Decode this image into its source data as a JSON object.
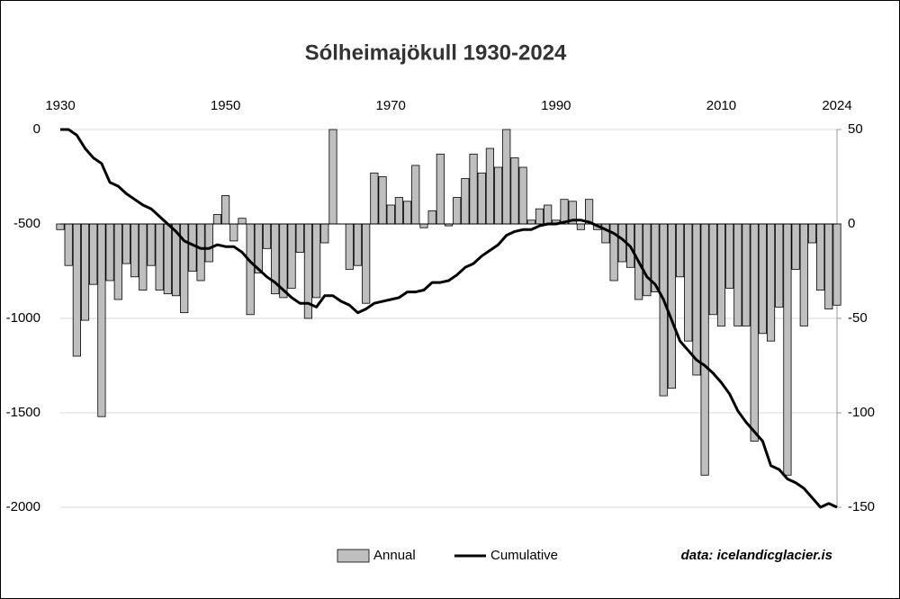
{
  "chart_data": {
    "type": "bar-line",
    "title": "Sólheimajökull 1930-2024",
    "x": [
      1930,
      1931,
      1932,
      1933,
      1934,
      1935,
      1936,
      1937,
      1938,
      1939,
      1940,
      1941,
      1942,
      1943,
      1944,
      1945,
      1946,
      1947,
      1948,
      1949,
      1950,
      1951,
      1952,
      1953,
      1954,
      1955,
      1956,
      1957,
      1958,
      1959,
      1960,
      1961,
      1962,
      1963,
      1964,
      1965,
      1966,
      1967,
      1968,
      1969,
      1970,
      1971,
      1972,
      1973,
      1974,
      1975,
      1976,
      1977,
      1978,
      1979,
      1980,
      1981,
      1982,
      1983,
      1984,
      1985,
      1986,
      1987,
      1988,
      1989,
      1990,
      1991,
      1992,
      1993,
      1994,
      1995,
      1996,
      1997,
      1998,
      1999,
      2000,
      2001,
      2002,
      2003,
      2004,
      2005,
      2006,
      2007,
      2008,
      2009,
      2010,
      2011,
      2012,
      2013,
      2014,
      2015,
      2016,
      2017,
      2018,
      2019,
      2020,
      2021,
      2022,
      2023,
      2024
    ],
    "xlim": [
      1930,
      2024
    ],
    "xticks": [
      1930,
      1950,
      1970,
      1990,
      2010,
      2024
    ],
    "ylim": [
      -2000,
      0
    ],
    "yticks": [
      0,
      -500,
      -1000,
      -1500,
      -2000
    ],
    "y2lim": [
      -150,
      50
    ],
    "y2ticks": [
      50,
      0,
      -50,
      -100,
      -150
    ],
    "grid": true,
    "series": [
      {
        "name": "Annual",
        "kind": "bar",
        "axis": "y2",
        "color": "#bfbfbf",
        "values": [
          -3,
          -22,
          -70,
          -51,
          -32,
          -102,
          -30,
          -40,
          -21,
          -28,
          -35,
          -22,
          -35,
          -37,
          -38,
          -47,
          -25,
          -30,
          -20,
          5,
          15,
          -9,
          3,
          -48,
          -26,
          -13,
          -37,
          -39,
          -34,
          -15,
          -50,
          -39,
          -10,
          50,
          0,
          -24,
          -22,
          -42,
          27,
          25,
          10,
          14,
          12,
          31,
          -2,
          7,
          37,
          -1,
          14,
          24,
          37,
          27,
          40,
          30,
          50,
          35,
          30,
          2,
          8,
          10,
          2,
          13,
          12,
          -3,
          13,
          -3,
          -10,
          -30,
          -20,
          -23,
          -40,
          -38,
          -36,
          -91,
          -87,
          -28,
          -62,
          -80,
          -133,
          -48,
          -54,
          -34,
          -54,
          -54,
          -115,
          -58,
          -62,
          -44,
          -133,
          -24,
          -54,
          -10,
          -35,
          -45,
          -43
        ]
      },
      {
        "name": "Cumulative",
        "kind": "line",
        "axis": "y",
        "color": "#000000",
        "values": [
          0,
          0,
          -30,
          -100,
          -150,
          -180,
          -280,
          -300,
          -340,
          -370,
          -400,
          -420,
          -460,
          -500,
          -540,
          -590,
          -610,
          -630,
          -630,
          -610,
          -620,
          -620,
          -650,
          -700,
          -740,
          -780,
          -810,
          -850,
          -890,
          -920,
          -920,
          -940,
          -880,
          -880,
          -910,
          -930,
          -970,
          -950,
          -920,
          -910,
          -900,
          -890,
          -860,
          -860,
          -850,
          -810,
          -810,
          -800,
          -770,
          -730,
          -710,
          -670,
          -640,
          -610,
          -560,
          -540,
          -530,
          -530,
          -510,
          -500,
          -500,
          -490,
          -480,
          -480,
          -490,
          -510,
          -530,
          -550,
          -580,
          -620,
          -700,
          -780,
          -820,
          -900,
          -1010,
          -1120,
          -1170,
          -1220,
          -1250,
          -1290,
          -1340,
          -1400,
          -1490,
          -1550,
          -1600,
          -1650,
          -1780,
          -1800,
          -1850,
          -1870,
          -1900,
          -1950,
          -2000,
          -1980,
          -2000
        ]
      }
    ],
    "legend": "bottom",
    "annotation": "data: icelandicglacier.is"
  }
}
